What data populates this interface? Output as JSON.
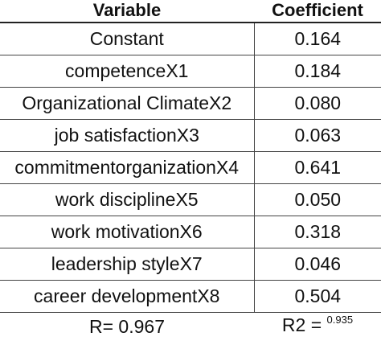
{
  "header": {
    "variable": "Variable",
    "coefficient": "Coefficient"
  },
  "rows": [
    {
      "variable": "Constant",
      "coefficient": "0.164"
    },
    {
      "variable": "competenceX1",
      "coefficient": "0.184"
    },
    {
      "variable": "Organizational ClimateX2",
      "coefficient": "0.080"
    },
    {
      "variable": "job satisfactionX3",
      "coefficient": "0.063"
    },
    {
      "variable": "commitmentorganizationX4",
      "coefficient": "0.641"
    },
    {
      "variable": "work disciplineX5",
      "coefficient": "0.050"
    },
    {
      "variable": "work motivationX6",
      "coefficient": "0.318"
    },
    {
      "variable": "leadership styleX7",
      "coefficient": "0.046"
    },
    {
      "variable": "career developmentX8",
      "coefficient": "0.504"
    }
  ],
  "footer": {
    "r_text": "R= 0.967",
    "r2_label": "R2 = ",
    "r2_value": "0.935"
  }
}
